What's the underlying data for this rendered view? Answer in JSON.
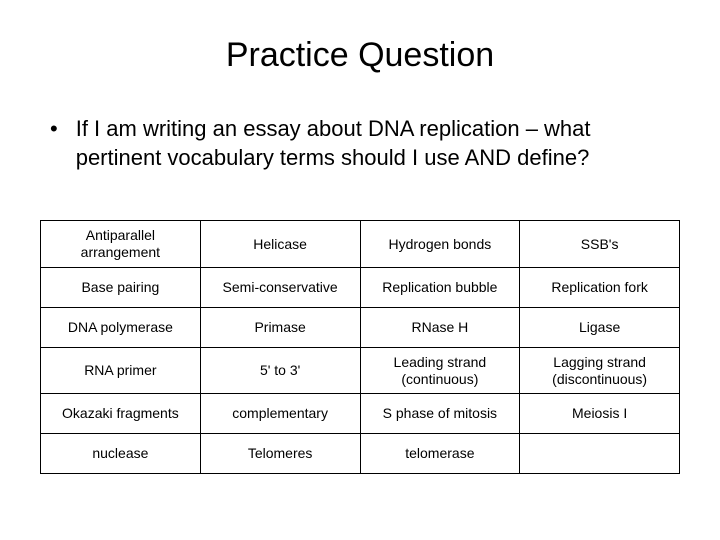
{
  "title": "Practice Question",
  "bullet": "If I am writing an essay about DNA replication – what pertinent vocabulary terms should I use AND define?",
  "table": {
    "rows": [
      [
        "Antiparallel arrangement",
        "Helicase",
        "Hydrogen bonds",
        "SSB's"
      ],
      [
        "Base pairing",
        "Semi-conservative",
        "Replication bubble",
        "Replication fork"
      ],
      [
        "DNA polymerase",
        "Primase",
        "RNase H",
        "Ligase"
      ],
      [
        "RNA primer",
        "5' to 3'",
        "Leading strand (continuous)",
        "Lagging strand (discontinuous)"
      ],
      [
        "Okazaki fragments",
        "complementary",
        "S phase of mitosis",
        "Meiosis I"
      ],
      [
        "nuclease",
        "Telomeres",
        "telomerase",
        ""
      ]
    ],
    "columns": 4,
    "cell_fontsize": 14,
    "border_color": "#000000"
  },
  "colors": {
    "background": "#ffffff",
    "text": "#000000"
  },
  "typography": {
    "title_fontsize": 34,
    "body_fontsize": 22,
    "cell_fontsize": 14,
    "font_family": "Arial"
  }
}
